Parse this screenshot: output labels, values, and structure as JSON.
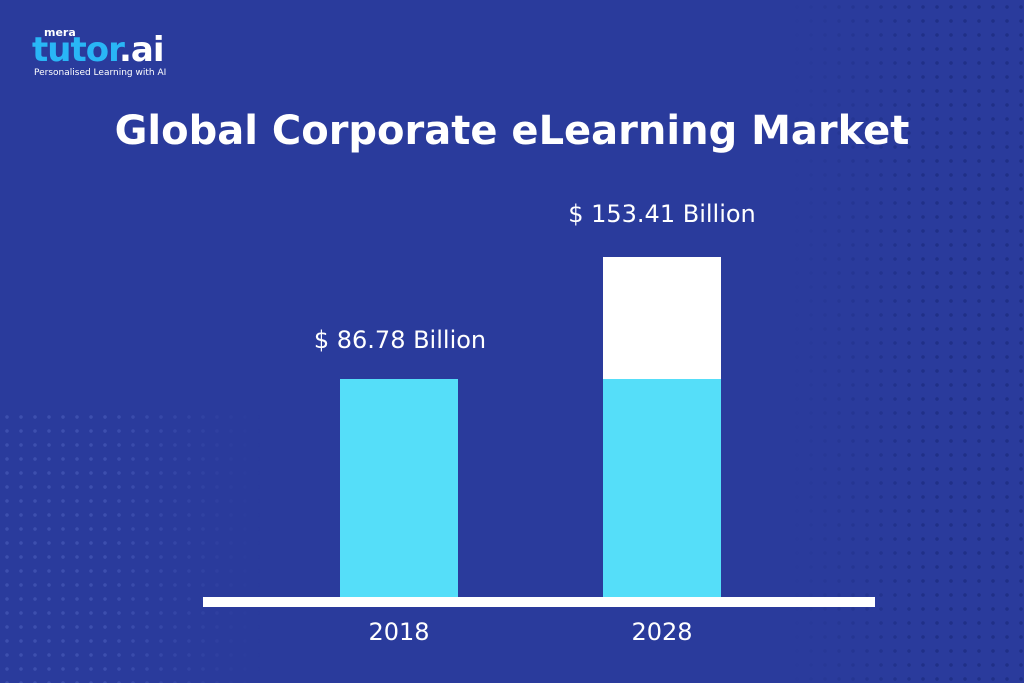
{
  "logo": {
    "top": "mera",
    "brand_main": "tutor",
    "brand_suffix": ".ai",
    "tagline": "Personalised Learning with AI"
  },
  "colors": {
    "background": "#2a3b9c",
    "bar": "#55def9",
    "bar_growth": "#ffffff",
    "text": "#ffffff"
  },
  "chart_data": {
    "type": "bar",
    "title": "Global Corporate eLearning Market",
    "categories": [
      "2018",
      "2028"
    ],
    "values": [
      86.78,
      153.41
    ],
    "unit": "Billion USD",
    "data_labels": [
      "$ 86.78 Billion",
      "$ 153.41 Billion"
    ],
    "xlabel": "",
    "ylabel": "",
    "grid": false,
    "note": "2028 bar shows 2018 level in cyan with growth portion in white"
  }
}
